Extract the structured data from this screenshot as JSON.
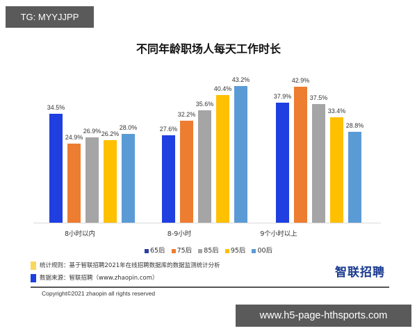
{
  "watermarks": {
    "top": "TG: MYYJJPP",
    "bottom": "www.h5-page-hthsports.com"
  },
  "chart_data": {
    "type": "bar",
    "title": "不同年龄职场人每天工作时长",
    "xlabel": "",
    "ylabel": "",
    "ylim": [
      0,
      45
    ],
    "grid": false,
    "legend_position": "bottom",
    "categories": [
      "8小时以内",
      "8-9小时",
      "9个小时以上"
    ],
    "series": [
      {
        "name": "65后",
        "color": "#1f3fe0",
        "values": [
          34.5,
          27.6,
          37.9
        ],
        "labels": [
          "34.5%",
          "27.6%",
          "37.9%"
        ]
      },
      {
        "name": "75后",
        "color": "#ed7d31",
        "values": [
          24.9,
          32.2,
          42.9
        ],
        "labels": [
          "24.9%",
          "32.2%",
          "42.9%"
        ]
      },
      {
        "name": "85后",
        "color": "#a5a5a5",
        "values": [
          26.9,
          35.6,
          37.5
        ],
        "labels": [
          "26.9%",
          "35.6%",
          "37.5%"
        ]
      },
      {
        "name": "95后",
        "color": "#ffc000",
        "values": [
          26.2,
          40.4,
          33.4
        ],
        "labels": [
          "26.2%",
          "40.4%",
          "33.4%"
        ]
      },
      {
        "name": "00后",
        "color": "#5b9bd5",
        "values": [
          28.0,
          43.2,
          28.8
        ],
        "labels": [
          "28.0%",
          "43.2%",
          "28.8%"
        ]
      }
    ]
  },
  "notes": {
    "rule": "统计规则：基于智联招聘2021年在线招聘数据库的数据监测统计分析",
    "rule_color": "#f9d65c",
    "source": "数据来源：智联招聘（www.zhaopin.com）",
    "source_color": "#1f3fe0"
  },
  "logo": "智联招聘",
  "copyright": "Copyright©2021 zhaopin  all rights reserved"
}
